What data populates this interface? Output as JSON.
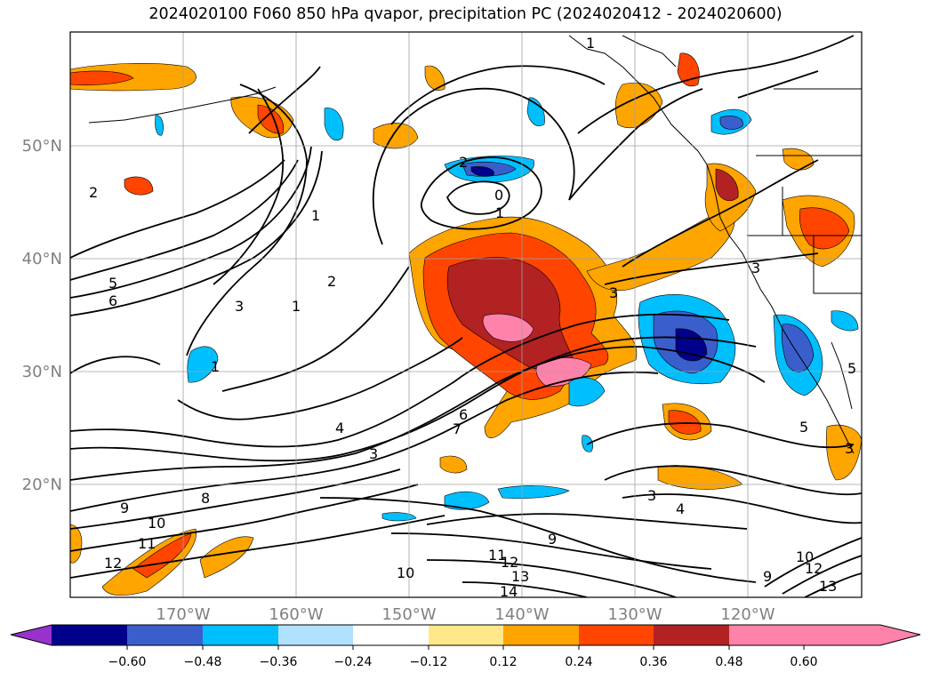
{
  "title": "2024020100 F060 850 hPa qvapor, precipitation PC (2024020412 - 2024020600)",
  "map": {
    "lat_labels": [
      "50°N",
      "40°N",
      "30°N",
      "20°N"
    ],
    "lon_labels": [
      "170°W",
      "160°W",
      "150°W",
      "140°W",
      "130°W",
      "120°W"
    ],
    "label_color": "#808080",
    "contour_labels": [
      "2",
      "2",
      "0",
      "1",
      "1",
      "1",
      "2",
      "3",
      "5",
      "6",
      "1",
      "4",
      "3",
      "6",
      "7",
      "8",
      "9",
      "10",
      "11",
      "12",
      "11",
      "12",
      "13",
      "14",
      "10",
      "9",
      "3",
      "4",
      "5",
      "3",
      "9",
      "10",
      "12",
      "13",
      "1",
      "3",
      "3",
      "5"
    ]
  },
  "colorbar": {
    "ticks": [
      "−0.60",
      "−0.48",
      "−0.36",
      "−0.24",
      "−0.12",
      "0.12",
      "0.24",
      "0.36",
      "0.48",
      "0.60"
    ],
    "colors": [
      "#9932cc",
      "#00008b",
      "#3a5fcd",
      "#00bfff",
      "#b0e2ff",
      "#ffffff",
      "#ffe88a",
      "#ffa500",
      "#ff4500",
      "#b22222",
      "#ff82ab"
    ],
    "extend": "both"
  }
}
